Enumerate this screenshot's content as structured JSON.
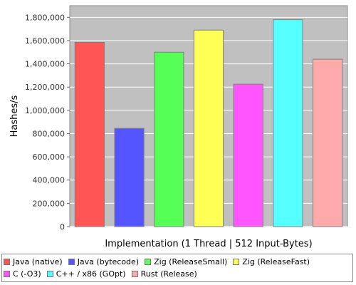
{
  "chart_data": {
    "type": "bar",
    "title": "",
    "xlabel": "Implementation (1 Thread | 512 Input-Bytes)",
    "ylabel": "Hashes/s",
    "ylim": [
      0,
      1900000
    ],
    "yticks": [
      0,
      200000,
      400000,
      600000,
      800000,
      1000000,
      1200000,
      1400000,
      1600000,
      1800000
    ],
    "ytick_labels": [
      "0",
      "200,000",
      "400,000",
      "600,000",
      "800,000",
      "1,000,000",
      "1,200,000",
      "1,400,000",
      "1,600,000",
      "1,800,000"
    ],
    "grid": true,
    "legend_position": "bottom",
    "series": [
      {
        "name": "Java (native)",
        "value": 1585000,
        "color": "#ff5555"
      },
      {
        "name": "Java (bytecode)",
        "value": 845000,
        "color": "#5555ff"
      },
      {
        "name": "Zig (ReleaseSmall)",
        "value": 1500000,
        "color": "#55ff55"
      },
      {
        "name": "Zig (ReleaseFast)",
        "value": 1690000,
        "color": "#ffff55"
      },
      {
        "name": "C (-O3)",
        "value": 1225000,
        "color": "#ff55ff"
      },
      {
        "name": "C++ / x86 (GOpt)",
        "value": 1780000,
        "color": "#55ffff"
      },
      {
        "name": "Rust (Release)",
        "value": 1440000,
        "color": "#ffaaaa"
      }
    ]
  }
}
